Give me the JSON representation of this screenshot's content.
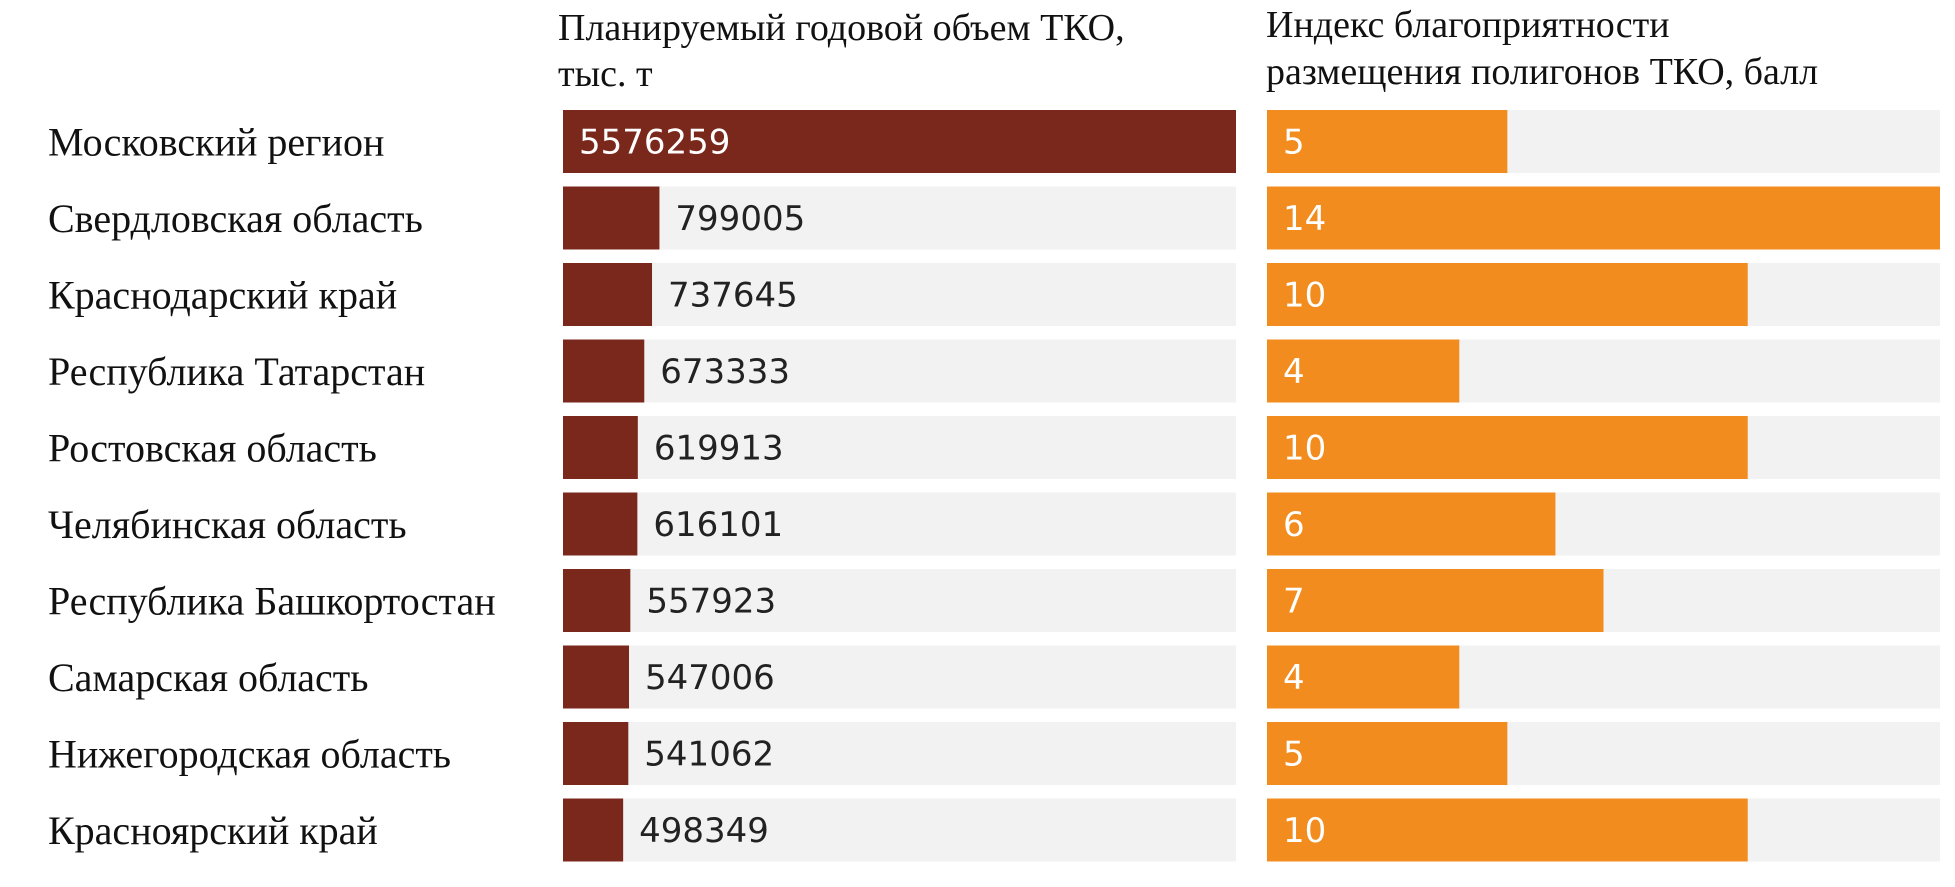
{
  "chart_data": [
    {
      "type": "bar",
      "orientation": "horizontal",
      "title_lines": [
        "Планируемый годовой объем ТКО,",
        "тыс. т"
      ],
      "categories": [
        "Московский регион",
        "Свердловская область",
        "Краснодарский край",
        "Республика Татарстан",
        "Ростовская область",
        "Челябинская область",
        "Республика Башкортостан",
        "Самарская область",
        "Нижегородская область",
        "Красноярский край"
      ],
      "values": [
        5576259,
        799005,
        737645,
        673333,
        619913,
        616101,
        557923,
        547006,
        541062,
        498349
      ],
      "xlim": [
        0,
        5576259
      ],
      "bar_color": "#7a271c",
      "track_color": "#f2f2f2",
      "grid": false,
      "legend": false
    },
    {
      "type": "bar",
      "orientation": "horizontal",
      "title_lines": [
        "Индекс благоприятности",
        "размещения полигонов ТКО, балл"
      ],
      "categories": [
        "Московский регион",
        "Свердловская область",
        "Краснодарский край",
        "Республика Татарстан",
        "Ростовская область",
        "Челябинская область",
        "Республика Башкортостан",
        "Самарская область",
        "Нижегородская область",
        "Красноярский край"
      ],
      "values": [
        5,
        14,
        10,
        4,
        10,
        6,
        7,
        4,
        5,
        10
      ],
      "xlim": [
        0,
        14
      ],
      "bar_color": "#f28c1e",
      "track_color": "#f2f2f2",
      "grid": false,
      "legend": false
    }
  ]
}
